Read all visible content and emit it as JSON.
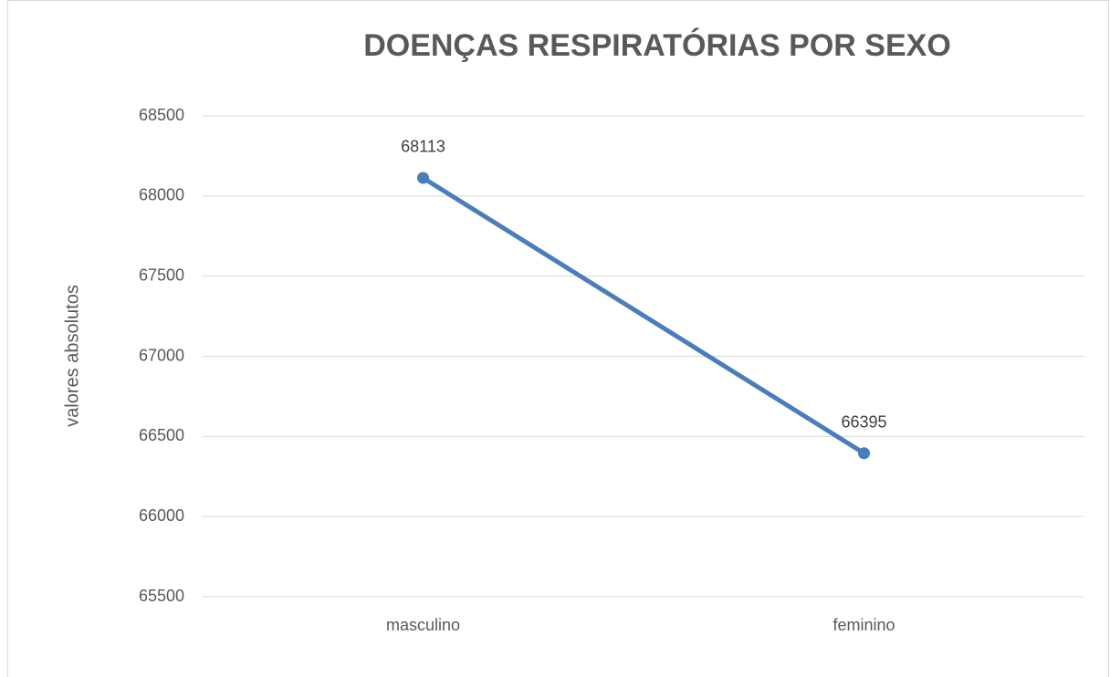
{
  "chart_data": {
    "type": "line",
    "title": "DOENÇAS RESPIRATÓRIAS POR SEXO",
    "y_label": "valores absolutos",
    "categories": [
      "masculino",
      "feminino"
    ],
    "values": [
      68113,
      66395
    ],
    "color": "#4a7ebb",
    "ylim": [
      65500,
      68500
    ],
    "yticks": [
      65500,
      66000,
      66500,
      67000,
      67500,
      68000,
      68500
    ],
    "grid": true
  }
}
